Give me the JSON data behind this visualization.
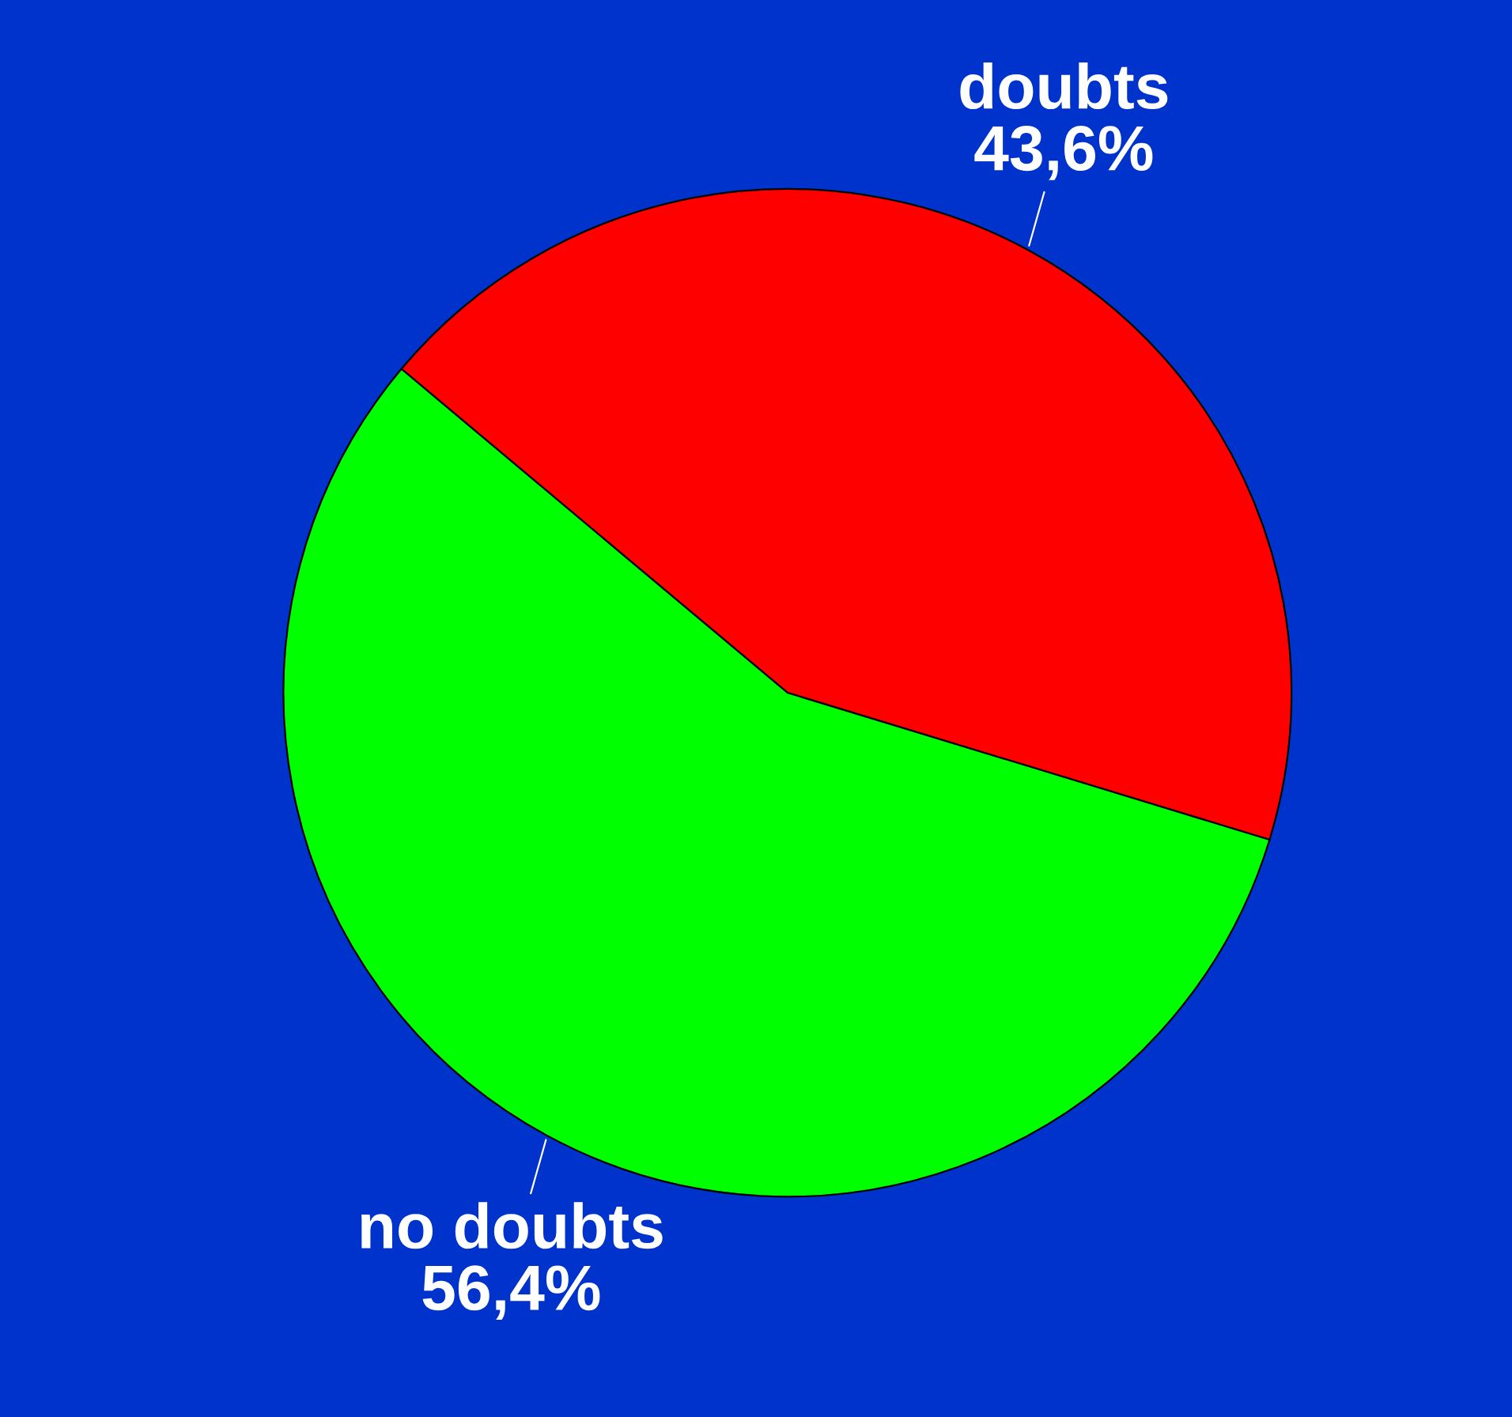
{
  "chart_data": {
    "type": "pie",
    "categories": [
      "doubts",
      "no doubts"
    ],
    "values": [
      43.6,
      56.4
    ],
    "colors": [
      "#ff0000",
      "#00ff00"
    ],
    "value_labels": [
      "43,6%",
      "56,4%"
    ]
  }
}
